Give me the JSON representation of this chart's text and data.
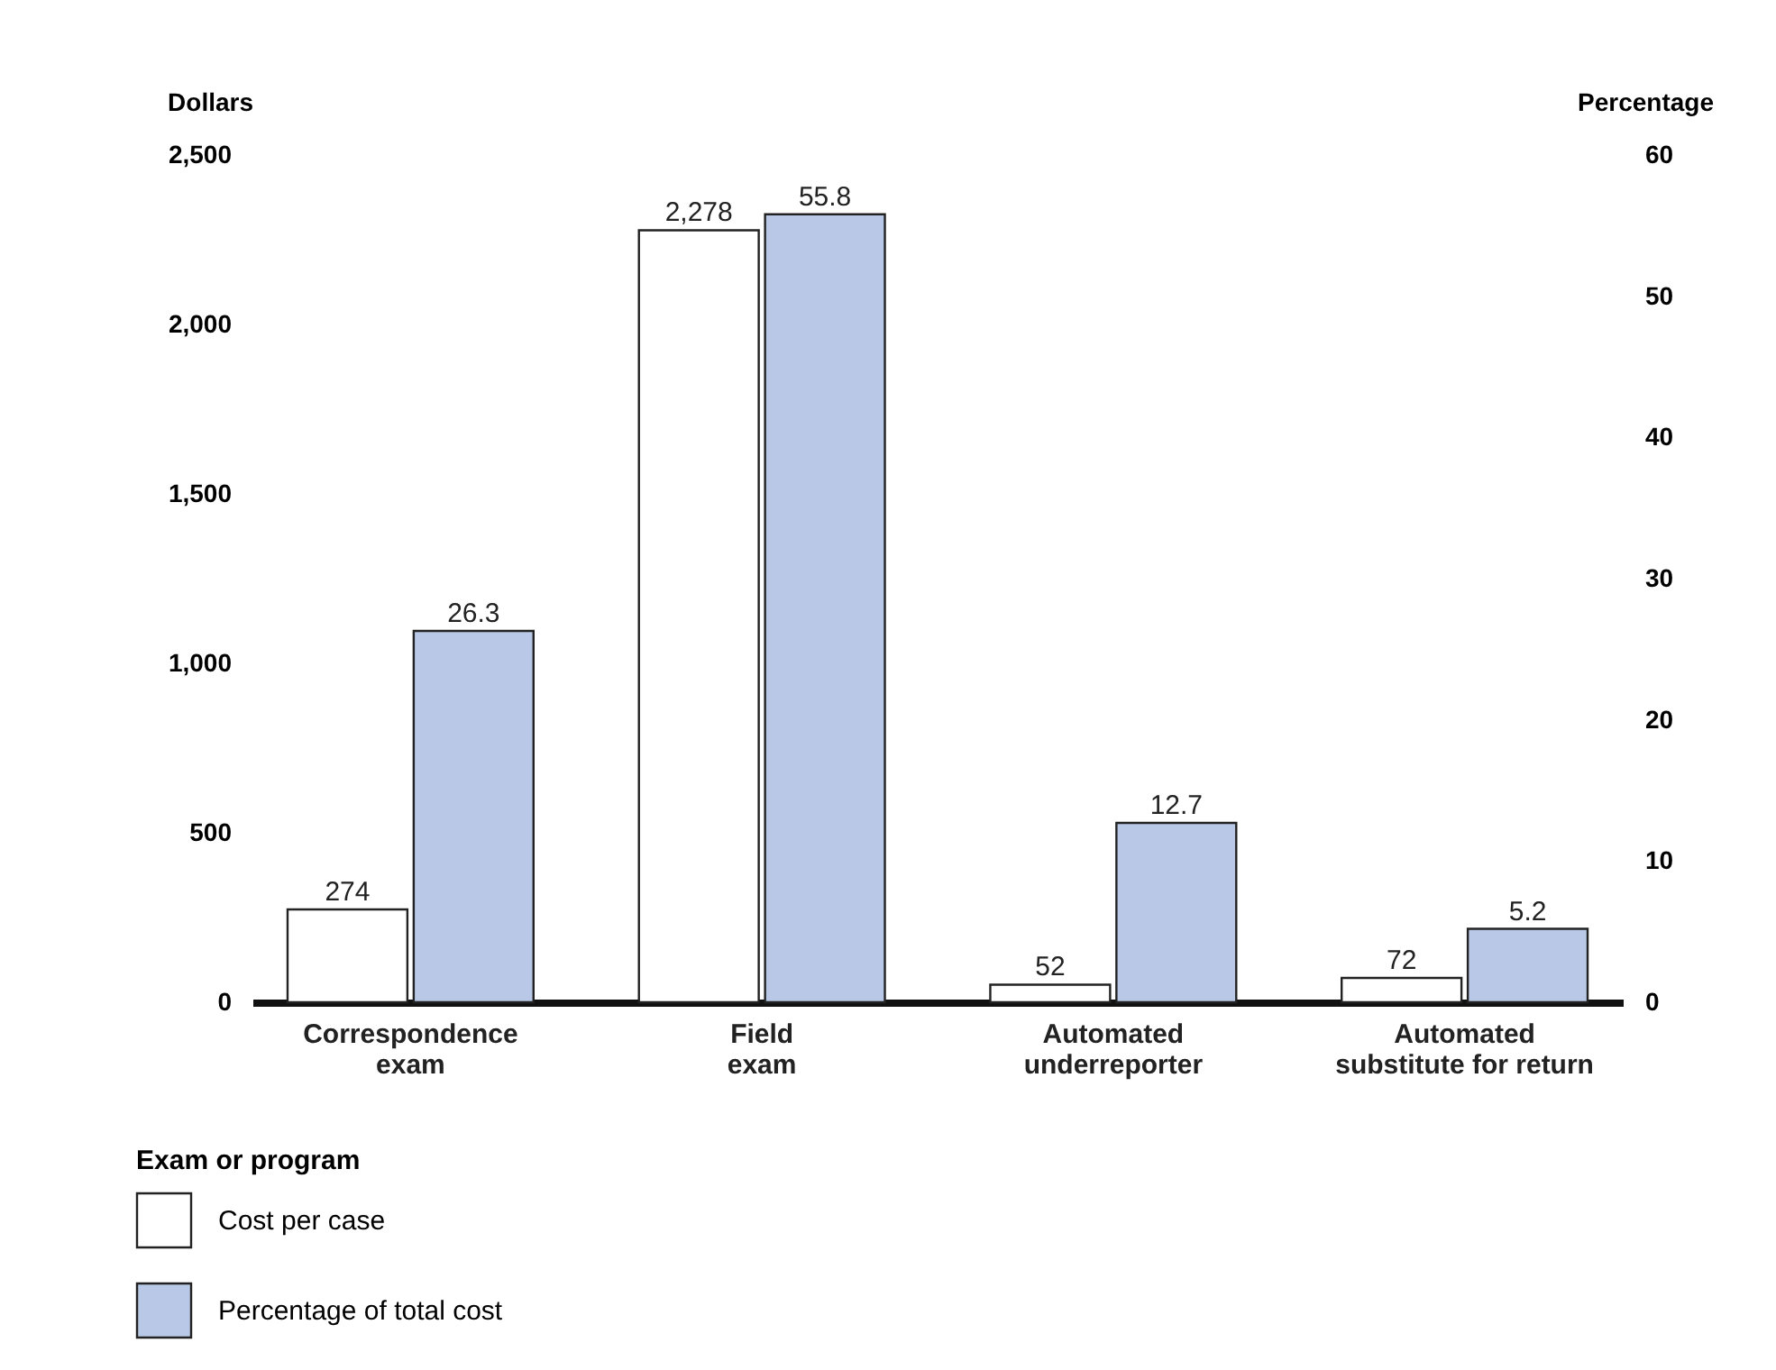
{
  "chart_data": {
    "type": "bar",
    "categories": [
      "Correspondence exam",
      "Field exam",
      "Automated underreporter",
      "Automated substitute for return"
    ],
    "series": [
      {
        "name": "Cost per case",
        "color": "#ffffff",
        "values": [
          274,
          2278,
          52,
          72
        ],
        "value_labels": [
          "274",
          "2,278",
          "52",
          "72"
        ]
      },
      {
        "name": "Percentage of total cost",
        "color": "#b9c8e6",
        "values": [
          26.3,
          55.8,
          12.7,
          5.2
        ],
        "value_labels": [
          "26.3",
          "55.8",
          "12.7",
          "5.2"
        ],
        "axis": "y2"
      }
    ],
    "xlabel": "Exam or program",
    "ylabel": "Dollars",
    "y2label": "Percentage",
    "ylim": [
      0,
      2500
    ],
    "yticks": [
      0,
      {
        "value": 500,
        "label": "500"
      },
      {
        "value": 1000,
        "label": "1,000"
      },
      {
        "value": 1500,
        "label": "1,500"
      },
      {
        "value": 2000,
        "label": "2,000"
      },
      {
        "value": 2500,
        "label": "2,500"
      }
    ],
    "y2lim": [
      0,
      60
    ],
    "y2ticks": [
      0,
      10,
      20,
      30,
      40,
      50,
      60
    ],
    "grid": false,
    "legend": "bottom left"
  }
}
